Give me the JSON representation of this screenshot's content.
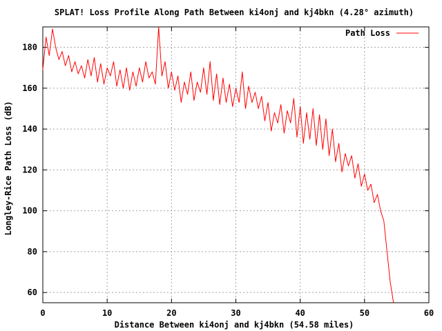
{
  "chart_data": {
    "type": "line",
    "title": "SPLAT! Loss Profile Along Path Between ki4onj and kj4bkn (4.28° azimuth)",
    "xlabel": "Distance Between ki4onj and kj4bkn (54.58 miles)",
    "ylabel": "Longley-Rice Path Loss (dB)",
    "xlim": [
      0,
      60
    ],
    "ylim": [
      55,
      190
    ],
    "x_ticks": [
      "0",
      "10",
      "20",
      "30",
      "40",
      "50",
      "60"
    ],
    "y_ticks": [
      "60",
      "80",
      "100",
      "120",
      "140",
      "160",
      "180"
    ],
    "grid": true,
    "legend_position": "top-right",
    "series": [
      {
        "name": "Path Loss",
        "color": "#ff0000",
        "x": [
          0,
          0.5,
          1,
          1.5,
          2,
          2.5,
          3,
          3.5,
          4,
          4.5,
          5,
          5.5,
          6,
          6.5,
          7,
          7.5,
          8,
          8.5,
          9,
          9.5,
          10,
          10.5,
          11,
          11.5,
          12,
          12.5,
          13,
          13.5,
          14,
          14.5,
          15,
          15.5,
          16,
          16.5,
          17,
          17.5,
          18,
          18.5,
          19,
          19.5,
          20,
          20.5,
          21,
          21.5,
          22,
          22.5,
          23,
          23.5,
          24,
          24.5,
          25,
          25.5,
          26,
          26.5,
          27,
          27.5,
          28,
          28.5,
          29,
          29.5,
          30,
          30.5,
          31,
          31.5,
          32,
          32.5,
          33,
          33.5,
          34,
          34.5,
          35,
          35.5,
          36,
          36.5,
          37,
          37.5,
          38,
          38.5,
          39,
          39.5,
          40,
          40.5,
          41,
          41.5,
          42,
          42.5,
          43,
          43.5,
          44,
          44.5,
          45,
          45.5,
          46,
          46.5,
          47,
          47.5,
          48,
          48.5,
          49,
          49.5,
          50,
          50.5,
          51,
          51.5,
          52,
          52.5,
          53,
          53.5,
          54,
          54.5
        ],
        "values": [
          169,
          185,
          176,
          189,
          180,
          174,
          178,
          171,
          176,
          168,
          173,
          167,
          171,
          165,
          174,
          166,
          175,
          163,
          172,
          162,
          170,
          166,
          173,
          161,
          169,
          160,
          170,
          159,
          168,
          161,
          170,
          163,
          173,
          165,
          168,
          162,
          190,
          166,
          173,
          160,
          168,
          159,
          166,
          153,
          163,
          157,
          168,
          154,
          163,
          158,
          170,
          157,
          173,
          154,
          167,
          152,
          165,
          153,
          162,
          151,
          160,
          153,
          168,
          150,
          161,
          153,
          158,
          150,
          156,
          144,
          153,
          139,
          148,
          143,
          152,
          138,
          149,
          143,
          155,
          136,
          151,
          133,
          148,
          135,
          150,
          132,
          147,
          130,
          145,
          127,
          140,
          124,
          133,
          119,
          128,
          122,
          127,
          116,
          123,
          112,
          118,
          110,
          113,
          104,
          108,
          100,
          95,
          80,
          65,
          55
        ]
      }
    ]
  }
}
